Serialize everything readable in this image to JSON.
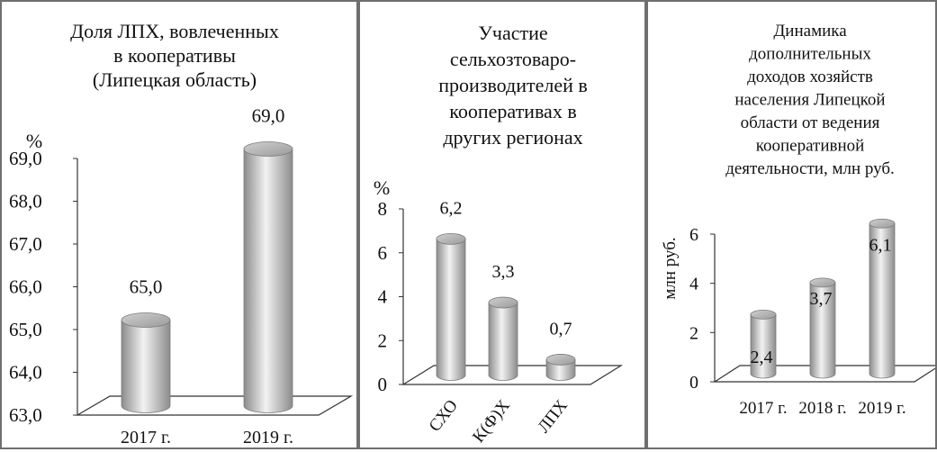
{
  "colors": {
    "frame": "#6f6f6f",
    "floor": "#333333",
    "bar_light": "#f2f2f2",
    "bar_dark": "#8c8c8c",
    "text": "#111111"
  },
  "chart_data": [
    {
      "type": "bar",
      "style": "3d-cylinder",
      "title": "Доля ЛПХ, вовлеченных в кооперативы (Липецкая область)",
      "title_lines": [
        "Доля ЛПХ, вовлеченных",
        "в  кооперативы",
        "(Липецкая область)"
      ],
      "ylabel": "%",
      "categories": [
        "2017 г.",
        "2019 г."
      ],
      "values": [
        65.0,
        69.0
      ],
      "data_labels": [
        "65,0",
        "69,0"
      ],
      "ylim": [
        63.0,
        69.0
      ],
      "yticks": [
        "63,0",
        "64,0",
        "65,0",
        "66,0",
        "67,0",
        "68,0",
        "69,0"
      ],
      "grid": false,
      "legend": "none"
    },
    {
      "type": "bar",
      "style": "3d-cylinder",
      "title": "Участие сельхозтоваро- производителей в кооперативах в других регионах",
      "title_lines": [
        "Участие",
        "сельхозтоваро-",
        "производителей в",
        "кооперативах в",
        "других регионах"
      ],
      "ylabel": "%",
      "categories": [
        "СХО",
        "К(Ф)Х",
        "ЛПХ"
      ],
      "values": [
        6.2,
        3.3,
        0.7
      ],
      "data_labels": [
        "6,2",
        "3,3",
        "0,7"
      ],
      "ylim": [
        0,
        8
      ],
      "yticks": [
        "0",
        "2",
        "4",
        "6",
        "8"
      ],
      "grid": false,
      "legend": "none"
    },
    {
      "type": "bar",
      "style": "3d-cylinder",
      "title": "Динамика дополнительных доходов хозяйств населения Липецкой области от ведения кооперативной деятельности, млн руб.",
      "title_lines": [
        "Динамика",
        "дополнительных",
        "доходов хозяйств",
        "населения Липецкой",
        "области от ведения",
        "кооперативной",
        "деятельности, млн руб."
      ],
      "ylabel": "млн руб.",
      "categories": [
        "2017 г.",
        "2018 г.",
        "2019 г."
      ],
      "values": [
        2.4,
        3.7,
        6.1
      ],
      "data_labels": [
        "2,4",
        "3,7",
        "6,1"
      ],
      "ylim": [
        0,
        6
      ],
      "yticks": [
        "0",
        "2",
        "4",
        "6"
      ],
      "grid": false,
      "legend": "none"
    }
  ]
}
